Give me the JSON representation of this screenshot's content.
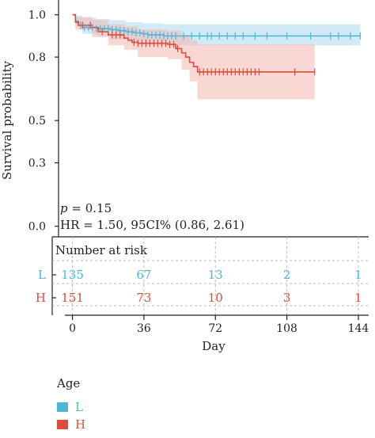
{
  "chart_data": {
    "type": "line",
    "subtype": "kaplan-meier survival curve with number-at-risk table",
    "ylabel": "Survival probability",
    "xlabel": "Day",
    "xlim": [
      -7,
      150
    ],
    "ylim": [
      -0.05,
      1.07
    ],
    "y_ticks": [
      0.0,
      0.3,
      0.5,
      0.8,
      1.0
    ],
    "y_tick_labels": [
      "0.0",
      "0.3",
      "0.5",
      "0.8",
      "1.0"
    ],
    "x_ticks": [
      0,
      36,
      72,
      108,
      144
    ],
    "x_tick_labels": [
      "0",
      "36",
      "72",
      "108",
      "144"
    ],
    "annotations": {
      "p_prefix": "p",
      "p_text": " = 0.15",
      "hr_text": "HR = 1.50, 95CI% (0.86, 2.61)"
    },
    "series": [
      {
        "name": "L",
        "color": "#4cb8d6",
        "band_color": "#a9d8ee",
        "steps": [
          [
            0,
            1.0
          ],
          [
            1.5,
            0.97
          ],
          [
            3,
            0.95
          ],
          [
            5,
            0.94
          ],
          [
            12,
            0.935
          ],
          [
            19,
            0.93
          ],
          [
            23,
            0.925
          ],
          [
            27,
            0.92
          ],
          [
            31,
            0.915
          ],
          [
            35,
            0.91
          ],
          [
            38,
            0.905
          ],
          [
            46,
            0.9
          ],
          [
            145,
            0.9
          ]
        ],
        "ci_upper": [
          [
            0,
            1.0
          ],
          [
            1.5,
            0.995
          ],
          [
            5,
            0.985
          ],
          [
            12,
            0.98
          ],
          [
            19,
            0.975
          ],
          [
            27,
            0.965
          ],
          [
            35,
            0.96
          ],
          [
            46,
            0.955
          ],
          [
            145,
            0.955
          ]
        ],
        "ci_lower": [
          [
            0,
            1.0
          ],
          [
            1.5,
            0.945
          ],
          [
            5,
            0.91
          ],
          [
            12,
            0.9
          ],
          [
            19,
            0.885
          ],
          [
            27,
            0.875
          ],
          [
            35,
            0.865
          ],
          [
            46,
            0.855
          ],
          [
            145,
            0.855
          ]
        ],
        "censor_times": [
          4,
          6,
          8,
          10,
          12,
          14,
          16,
          18,
          20,
          22,
          24,
          26,
          28,
          30,
          32,
          34,
          36,
          38,
          40,
          42,
          44,
          46,
          48,
          50,
          52,
          56,
          60,
          64,
          68,
          70,
          74,
          78,
          82,
          86,
          92,
          98,
          108,
          120,
          130,
          134,
          140,
          145
        ]
      },
      {
        "name": "H",
        "color": "#e04a3a",
        "band_color": "#f4b6ae",
        "steps": [
          [
            0,
            1.0
          ],
          [
            1.5,
            0.965
          ],
          [
            3,
            0.95
          ],
          [
            10,
            0.94
          ],
          [
            13,
            0.92
          ],
          [
            18,
            0.905
          ],
          [
            26,
            0.89
          ],
          [
            28,
            0.88
          ],
          [
            30,
            0.87
          ],
          [
            33,
            0.865
          ],
          [
            48,
            0.86
          ],
          [
            52,
            0.84
          ],
          [
            55,
            0.82
          ],
          [
            57,
            0.8
          ],
          [
            59,
            0.775
          ],
          [
            61,
            0.755
          ],
          [
            63,
            0.73
          ],
          [
            122,
            0.73
          ]
        ],
        "ci_upper": [
          [
            0,
            1.0
          ],
          [
            1.5,
            0.99
          ],
          [
            10,
            0.975
          ],
          [
            18,
            0.955
          ],
          [
            26,
            0.945
          ],
          [
            33,
            0.93
          ],
          [
            48,
            0.925
          ],
          [
            55,
            0.905
          ],
          [
            59,
            0.88
          ],
          [
            63,
            0.86
          ],
          [
            122,
            0.86
          ]
        ],
        "ci_lower": [
          [
            0,
            1.0
          ],
          [
            1.5,
            0.93
          ],
          [
            10,
            0.895
          ],
          [
            18,
            0.855
          ],
          [
            26,
            0.835
          ],
          [
            33,
            0.8
          ],
          [
            48,
            0.79
          ],
          [
            55,
            0.74
          ],
          [
            59,
            0.685
          ],
          [
            63,
            0.6
          ],
          [
            122,
            0.6
          ]
        ],
        "censor_times": [
          5,
          9,
          15,
          20,
          22,
          24,
          31,
          33,
          35,
          37,
          39,
          41,
          43,
          45,
          47,
          49,
          51,
          53,
          64,
          66,
          68,
          70,
          72,
          74,
          76,
          78,
          80,
          82,
          84,
          86,
          88,
          90,
          92,
          94,
          112,
          122
        ]
      }
    ],
    "risk_table": {
      "title": "Number at risk",
      "rows": [
        {
          "name": "L",
          "color": "#4cb8d6",
          "values": [
            "135",
            "67",
            "13",
            "2",
            "1"
          ]
        },
        {
          "name": "H",
          "color": "#e04a3a",
          "values": [
            "151",
            "73",
            "10",
            "3",
            "1"
          ]
        }
      ]
    },
    "legend": {
      "title": "Age",
      "placement": "bottom-left",
      "items": [
        {
          "label": "L",
          "color": "#4cb8d6"
        },
        {
          "label": "H",
          "color": "#e04a3a"
        }
      ]
    }
  }
}
